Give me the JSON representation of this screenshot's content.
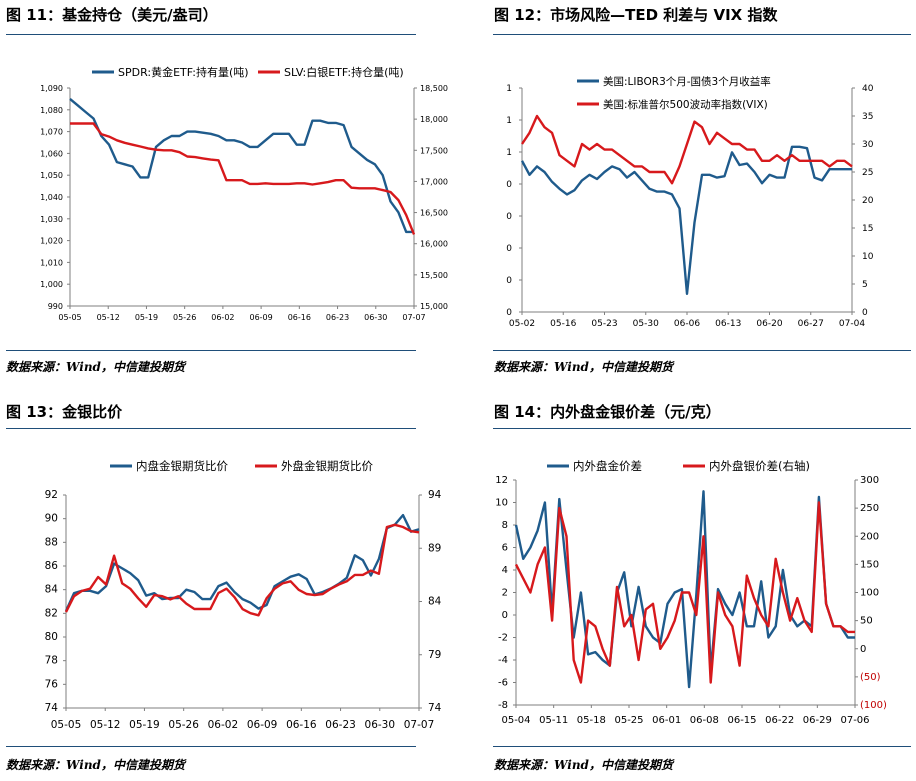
{
  "source_text": "数据来源：Wind，中信建投期货",
  "colors": {
    "blue": "#1f5b8c",
    "red": "#d7191c",
    "rule": "#1f4e79",
    "axis_red": "#c00000"
  },
  "chart_data": [
    {
      "title": "图 11：基金持仓（美元/盎司）",
      "type": "line",
      "legend": [
        "SPDR:黄金ETF:持有量(吨)",
        "SLV:白银ETF:持仓量(吨)"
      ],
      "x_ticks": [
        "05-05",
        "05-12",
        "05-19",
        "05-26",
        "06-02",
        "06-09",
        "06-16",
        "06-23",
        "06-30",
        "07-07"
      ],
      "y_left": {
        "ticks": [
          "990",
          "1,000",
          "1,010",
          "1,020",
          "1,030",
          "1,040",
          "1,050",
          "1,060",
          "1,070",
          "1,080",
          "1,090"
        ],
        "range": [
          990,
          1090
        ]
      },
      "y_right": {
        "ticks": [
          "15,000",
          "15,500",
          "16,000",
          "16,500",
          "17,000",
          "17,500",
          "18,000",
          "18,500"
        ],
        "range": [
          15000,
          18500
        ]
      },
      "x_range": [
        0,
        44
      ],
      "series": [
        {
          "name": "SPDR:黄金ETF:持有量(吨)",
          "axis": "left",
          "color": "blue",
          "x": [
            0,
            1,
            2,
            3,
            4,
            5,
            6,
            7,
            8,
            9,
            10,
            11,
            12,
            13,
            14,
            15,
            16,
            17,
            18,
            19,
            20,
            21,
            22,
            23,
            24,
            25,
            26,
            27,
            28,
            29,
            30,
            31,
            32,
            33,
            34,
            35,
            36,
            37,
            38,
            39,
            40,
            41,
            42,
            43,
            44
          ],
          "y": [
            1085,
            1082,
            1079,
            1076,
            1068,
            1064,
            1056,
            1055,
            1054,
            1049,
            1049,
            1063,
            1066,
            1068,
            1068,
            1070,
            1070,
            1069.5,
            1069,
            1068,
            1066,
            1066,
            1065,
            1063,
            1063,
            1066,
            1069,
            1069,
            1069,
            1064,
            1064,
            1075,
            1075,
            1074,
            1074,
            1073,
            1063,
            1060,
            1057,
            1055,
            1050,
            1038,
            1033,
            1024,
            1024
          ]
        },
        {
          "name": "SLV:白银ETF:持仓量(吨)",
          "axis": "right",
          "color": "red",
          "x": [
            0,
            1,
            2,
            3,
            4,
            5,
            6,
            7,
            8,
            9,
            10,
            11,
            12,
            13,
            14,
            15,
            16,
            17,
            18,
            19,
            20,
            21,
            22,
            23,
            24,
            25,
            26,
            27,
            28,
            29,
            30,
            31,
            32,
            33,
            34,
            35,
            36,
            37,
            38,
            39,
            40,
            41,
            42,
            43,
            44
          ],
          "y": [
            17930,
            17930,
            17930,
            17930,
            17760,
            17720,
            17660,
            17620,
            17590,
            17560,
            17530,
            17510,
            17500,
            17500,
            17470,
            17400,
            17390,
            17370,
            17350,
            17340,
            17020,
            17020,
            17020,
            16960,
            16960,
            16970,
            16960,
            16960,
            16960,
            16970,
            16970,
            16950,
            16970,
            16990,
            17020,
            17020,
            16900,
            16890,
            16890,
            16890,
            16860,
            16830,
            16700,
            16460,
            16150
          ]
        }
      ]
    },
    {
      "title": "图 12：市场风险—TED 利差与 VIX 指数",
      "type": "line",
      "legend": [
        "美国:LIBOR3个月-国债3个月收益率",
        "美国:标准普尔500波动率指数(VIX)"
      ],
      "x_ticks": [
        "05-02",
        "05-16",
        "05-23",
        "05-30",
        "06-06",
        "06-13",
        "06-20",
        "06-27",
        "07-04"
      ],
      "y_left": {
        "ticks": [
          "0",
          "0",
          "0",
          "0",
          "0",
          "1",
          "1",
          "1"
        ],
        "range": [
          -0.4,
          1.2
        ]
      },
      "y_right": {
        "ticks": [
          "0",
          "5",
          "10",
          "15",
          "20",
          "25",
          "30",
          "35",
          "40"
        ],
        "range": [
          0,
          40
        ]
      },
      "x_range": [
        0,
        44
      ],
      "series": [
        {
          "name": "美国:LIBOR3个月-国债3个月收益率",
          "axis": "left",
          "color": "blue",
          "x": [
            0,
            1,
            2,
            3,
            4,
            5,
            6,
            7,
            8,
            9,
            10,
            11,
            12,
            13,
            14,
            15,
            16,
            17,
            18,
            19,
            20,
            21,
            22,
            23,
            24,
            25,
            26,
            27,
            28,
            29,
            30,
            31,
            32,
            33,
            34,
            35,
            36,
            37,
            38,
            39,
            40,
            41,
            42,
            43,
            44
          ],
          "y": [
            0.68,
            0.58,
            0.64,
            0.6,
            0.53,
            0.48,
            0.44,
            0.47,
            0.54,
            0.58,
            0.55,
            0.6,
            0.64,
            0.62,
            0.56,
            0.6,
            0.54,
            0.48,
            0.46,
            0.46,
            0.44,
            0.34,
            -0.27,
            0.24,
            0.58,
            0.58,
            0.56,
            0.57,
            0.74,
            0.65,
            0.66,
            0.6,
            0.52,
            0.58,
            0.56,
            0.56,
            0.78,
            0.78,
            0.77,
            0.56,
            0.54,
            0.62,
            0.62,
            0.62,
            0.62
          ]
        },
        {
          "name": "美国:标准普尔500波动率指数(VIX)",
          "axis": "right",
          "color": "red",
          "x": [
            0,
            1,
            2,
            3,
            4,
            5,
            6,
            7,
            8,
            9,
            10,
            11,
            12,
            13,
            14,
            15,
            16,
            17,
            18,
            19,
            20,
            21,
            22,
            23,
            24,
            25,
            26,
            27,
            28,
            29,
            30,
            31,
            32,
            33,
            34,
            35,
            36,
            37,
            38,
            39,
            40,
            41,
            42,
            43,
            44
          ],
          "y": [
            30,
            32,
            35,
            33,
            32,
            28,
            27,
            26,
            30,
            29,
            30,
            29,
            29,
            28,
            27,
            26,
            26,
            25,
            25,
            25,
            23,
            26,
            30,
            34,
            33,
            30,
            32,
            31,
            30,
            30,
            29,
            29,
            27,
            27,
            28,
            27,
            28,
            27,
            27,
            27,
            27,
            26,
            27,
            27,
            26
          ]
        }
      ]
    },
    {
      "title": "图 13：金银比价",
      "type": "line",
      "legend": [
        "内盘金银期货比价",
        "外盘金银期货比价"
      ],
      "x_ticks": [
        "05-05",
        "05-12",
        "05-19",
        "05-26",
        "06-02",
        "06-09",
        "06-16",
        "06-23",
        "06-30",
        "07-07"
      ],
      "y_left": {
        "ticks": [
          "74",
          "76",
          "78",
          "80",
          "82",
          "84",
          "86",
          "88",
          "90",
          "92"
        ],
        "range": [
          74,
          92
        ]
      },
      "y_right": {
        "ticks": [
          "74",
          "79",
          "84",
          "89",
          "94"
        ],
        "range": [
          74,
          94
        ]
      },
      "x_range": [
        0,
        44
      ],
      "series": [
        {
          "name": "内盘金银期货比价",
          "axis": "left",
          "color": "blue",
          "x": [
            0,
            1,
            2,
            3,
            4,
            5,
            6,
            7,
            8,
            9,
            10,
            11,
            12,
            13,
            14,
            15,
            16,
            17,
            18,
            19,
            20,
            21,
            22,
            23,
            24,
            25,
            26,
            27,
            28,
            29,
            30,
            31,
            32,
            33,
            34,
            35,
            36,
            37,
            38,
            39,
            40,
            41,
            42,
            43,
            44
          ],
          "y": [
            82.2,
            83.7,
            83.9,
            83.9,
            83.7,
            84.3,
            86.2,
            85.8,
            85.4,
            84.8,
            83.5,
            83.7,
            83.2,
            83.3,
            83.3,
            84,
            83.8,
            83.2,
            83.2,
            84.3,
            84.6,
            83.8,
            83.2,
            82.9,
            82.4,
            82.7,
            84.3,
            84.7,
            85.1,
            85.3,
            84.9,
            83.6,
            83.8,
            84.1,
            84.5,
            85,
            86.9,
            86.5,
            85.2,
            86.6,
            89.2,
            89.5,
            90.3,
            88.9,
            89.1
          ]
        },
        {
          "name": "外盘金银期货比价",
          "axis": "right",
          "color": "red",
          "x": [
            0,
            1,
            2,
            3,
            4,
            5,
            6,
            7,
            8,
            9,
            10,
            11,
            12,
            13,
            14,
            15,
            16,
            17,
            18,
            19,
            20,
            21,
            22,
            23,
            24,
            25,
            26,
            27,
            28,
            29,
            30,
            31,
            32,
            33,
            34,
            35,
            36,
            37,
            38,
            39,
            40,
            41,
            42,
            43,
            44
          ],
          "y": [
            83,
            84.5,
            85,
            85.2,
            86.3,
            85.6,
            88.3,
            85.7,
            85.2,
            84.3,
            83.5,
            84.6,
            84.5,
            84.2,
            84.5,
            83.8,
            83.3,
            83.3,
            83.3,
            84.8,
            85.2,
            84.4,
            83.3,
            82.9,
            82.7,
            84.3,
            85.2,
            85.7,
            85.9,
            85.1,
            84.7,
            84.6,
            84.7,
            85.2,
            85.6,
            85.9,
            86.5,
            86.5,
            86.9,
            86.6,
            91,
            91.2,
            91,
            90.6,
            90.5
          ]
        }
      ]
    },
    {
      "title": "图 14：内外盘金银价差（元/克）",
      "type": "line",
      "legend": [
        "内外盘金价差",
        "内外盘银价差(右轴)"
      ],
      "x_ticks": [
        "05-04",
        "05-11",
        "05-18",
        "05-25",
        "06-01",
        "06-08",
        "06-15",
        "06-22",
        "06-29",
        "07-06"
      ],
      "y_left": {
        "ticks": [
          "-8",
          "-6",
          "-4",
          "-2",
          "0",
          "2",
          "4",
          "6",
          "8",
          "10",
          "12"
        ],
        "range": [
          -8,
          12
        ]
      },
      "y_right": {
        "ticks": [
          "(100)",
          "(50)",
          "0",
          "50",
          "100",
          "150",
          "200",
          "250",
          "300"
        ],
        "range": [
          -100,
          300
        ]
      },
      "x_range": [
        0,
        47
      ],
      "series": [
        {
          "name": "内外盘金价差",
          "axis": "left",
          "color": "blue",
          "x": [
            0,
            1,
            2,
            3,
            4,
            5,
            6,
            7,
            8,
            9,
            10,
            11,
            12,
            13,
            14,
            15,
            16,
            17,
            18,
            19,
            20,
            21,
            22,
            23,
            24,
            25,
            26,
            27,
            28,
            29,
            30,
            31,
            32,
            33,
            34,
            35,
            36,
            37,
            38,
            39,
            40,
            41,
            42,
            43,
            44,
            45,
            46,
            47
          ],
          "y": [
            8,
            5,
            6,
            7.5,
            10,
            0.2,
            10.3,
            4,
            -2,
            2,
            -3.5,
            -3.3,
            -4,
            -4.5,
            2,
            3.8,
            -1,
            2.5,
            -1,
            -2,
            -2.5,
            1,
            2,
            2.3,
            -6.4,
            1.8,
            11,
            -5,
            2.3,
            1,
            0,
            2,
            -1,
            -1,
            3,
            -2,
            -1,
            4,
            0,
            -1,
            -0.5,
            -1,
            10.5,
            1,
            -1,
            -1,
            -2,
            -2
          ]
        },
        {
          "name": "内外盘银价差(右轴)",
          "axis": "right",
          "color": "red",
          "x": [
            0,
            1,
            2,
            3,
            4,
            5,
            6,
            7,
            8,
            9,
            10,
            11,
            12,
            13,
            14,
            15,
            16,
            17,
            18,
            19,
            20,
            21,
            22,
            23,
            24,
            25,
            26,
            27,
            28,
            29,
            30,
            31,
            32,
            33,
            34,
            35,
            36,
            37,
            38,
            39,
            40,
            41,
            42,
            43,
            44,
            45,
            46,
            47
          ],
          "y": [
            150,
            125,
            100,
            150,
            180,
            50,
            250,
            200,
            -20,
            -60,
            50,
            40,
            0,
            -30,
            110,
            40,
            60,
            -20,
            70,
            80,
            0,
            20,
            50,
            100,
            100,
            60,
            200,
            -60,
            100,
            60,
            40,
            -30,
            130,
            90,
            60,
            40,
            160,
            100,
            50,
            90,
            50,
            30,
            260,
            80,
            40,
            40,
            30,
            30
          ]
        }
      ]
    }
  ]
}
